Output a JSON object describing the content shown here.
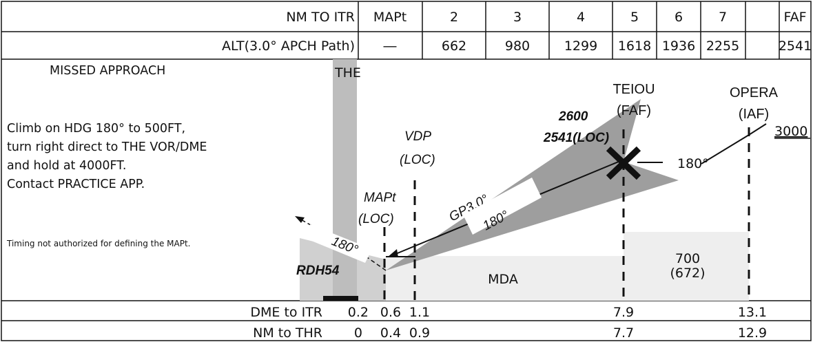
{
  "header": {
    "row1_label": "NM TO ITR",
    "row1_values": [
      "MAPt",
      "2",
      "3",
      "4",
      "5",
      "6",
      "7",
      "FAF"
    ],
    "row2_label": "ALT(3.0° APCH Path)",
    "row2_values": [
      "―",
      "662",
      "980",
      "1299",
      "1618",
      "1936",
      "2255",
      "2541"
    ]
  },
  "missed_approach": {
    "title": "MISSED APPROACH",
    "lines": [
      "Climb on HDG 180° to 500FT,",
      "turn right direct to THE VOR/DME",
      "and hold at 4000FT.",
      "Contact PRACTICE APP."
    ],
    "note": "Timing not authorized for defining the MAPt."
  },
  "fixes": {
    "the": "THE",
    "teiou_name": "TEIOU",
    "teiou_role": "(FAF)",
    "opera_name": "OPERA",
    "opera_role": "(IAF)",
    "vdp_line1": "VDP",
    "vdp_line2": "(LOC)",
    "mapt_line1": "MAPt",
    "mapt_line2": "(LOC)"
  },
  "profile": {
    "alt_faf_top": "2600",
    "alt_faf_loc": "2541(LOC)",
    "iaf_alt": "3000",
    "inbound_heading": "180°",
    "gp_label": "GP3.0°",
    "final_course": "180°",
    "missed_heading": "180°",
    "rdh": "RDH54",
    "mda": "MDA",
    "step_alt": "700",
    "step_alt_agl": "(672)"
  },
  "footer": {
    "dme_label": "DME to ITR",
    "dme_values": [
      "0.2",
      "0.6",
      "1.1",
      "7.9",
      "13.1"
    ],
    "thr_label": "NM to THR",
    "thr_values": [
      "0",
      "0.4",
      "0.9",
      "7.7",
      "12.9"
    ]
  }
}
